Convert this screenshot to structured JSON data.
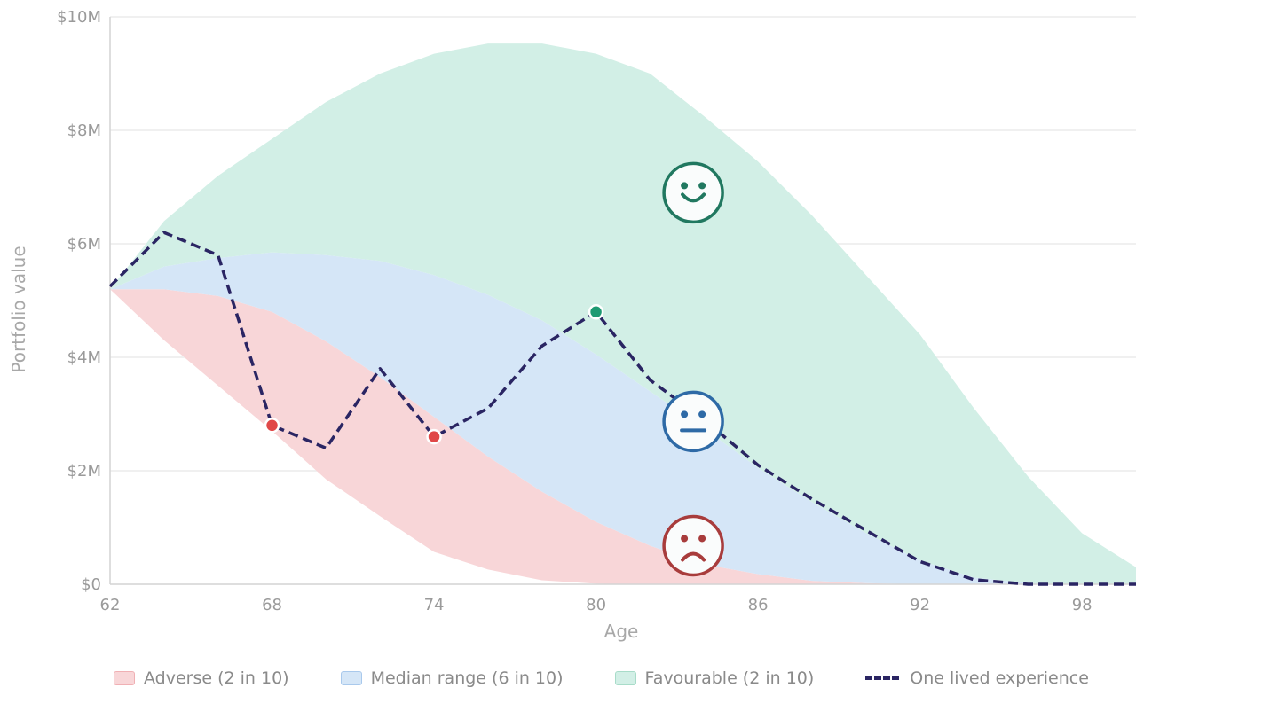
{
  "chart_data": {
    "type": "area",
    "xlabel": "Age",
    "ylabel": "Portfolio value",
    "xlim": [
      62,
      100
    ],
    "ylim": [
      0,
      10
    ],
    "x_ticks": [
      62,
      68,
      74,
      80,
      86,
      92,
      98
    ],
    "x_tick_labels": [
      "62",
      "68",
      "74",
      "80",
      "86",
      "92",
      "98"
    ],
    "y_ticks": [
      0,
      2,
      4,
      6,
      8,
      10
    ],
    "y_tick_labels": [
      "$0",
      "$2M",
      "$4M",
      "$6M",
      "$8M",
      "$10M"
    ],
    "grid": "horizontal",
    "legend_position": "bottom",
    "ages": [
      62,
      64,
      66,
      68,
      70,
      72,
      74,
      76,
      78,
      80,
      82,
      84,
      86,
      88,
      90,
      92,
      94,
      96,
      98,
      100
    ],
    "bands": [
      {
        "name": "Adverse (2 in 10)",
        "color": "#f8d6d8",
        "lower": [
          5.2,
          4.3,
          3.5,
          2.7,
          1.85,
          1.2,
          0.57,
          0.26,
          0.07,
          0.01,
          0,
          0,
          0,
          0,
          0,
          0,
          0,
          0,
          0,
          0
        ],
        "upper": [
          5.2,
          5.2,
          5.08,
          4.8,
          4.28,
          3.65,
          2.95,
          2.25,
          1.63,
          1.1,
          0.68,
          0.35,
          0.18,
          0.06,
          0.02,
          0,
          0,
          0,
          0,
          0
        ]
      },
      {
        "name": "Median range (6 in 10)",
        "color": "#d5e6f7",
        "lower": [
          5.2,
          5.2,
          5.08,
          4.8,
          4.28,
          3.65,
          2.95,
          2.25,
          1.63,
          1.1,
          0.68,
          0.35,
          0.18,
          0.06,
          0.02,
          0,
          0,
          0,
          0,
          0
        ],
        "upper": [
          5.2,
          5.6,
          5.75,
          5.85,
          5.8,
          5.7,
          5.45,
          5.1,
          4.65,
          4.05,
          3.4,
          2.75,
          2.05,
          1.45,
          0.9,
          0.42,
          0.12,
          0.02,
          0,
          0
        ]
      },
      {
        "name": "Favourable (2 in 10)",
        "color": "#d2efe6",
        "lower": [
          5.2,
          5.6,
          5.75,
          5.85,
          5.8,
          5.7,
          5.45,
          5.1,
          4.65,
          4.05,
          3.4,
          2.75,
          2.05,
          1.45,
          0.9,
          0.42,
          0.12,
          0.02,
          0,
          0
        ],
        "upper": [
          5.2,
          6.4,
          7.2,
          7.85,
          8.5,
          9.0,
          9.35,
          9.53,
          9.53,
          9.35,
          9.0,
          8.25,
          7.45,
          6.5,
          5.45,
          4.4,
          3.1,
          1.9,
          0.9,
          0.3
        ]
      }
    ],
    "series": [
      {
        "name": "One lived experience",
        "color": "#2a2563",
        "x": [
          62,
          64,
          66,
          68,
          70,
          72,
          74,
          76,
          78,
          80,
          82,
          84,
          86,
          88,
          90,
          92,
          94,
          96,
          98,
          100
        ],
        "values": [
          5.25,
          6.2,
          5.8,
          2.8,
          2.4,
          3.8,
          2.6,
          3.1,
          4.2,
          4.8,
          3.6,
          2.9,
          2.1,
          1.5,
          0.95,
          0.4,
          0.08,
          0,
          0,
          0
        ]
      }
    ],
    "highlight_points": [
      {
        "x": 68,
        "y": 2.8,
        "color": "#e04848"
      },
      {
        "x": 74,
        "y": 2.6,
        "color": "#e04848"
      },
      {
        "x": 80,
        "y": 4.8,
        "color": "#1e9a72"
      }
    ],
    "mood_icons": [
      {
        "icon": "happy-face-icon",
        "x": 83.6,
        "y": 6.9,
        "color": "#217860"
      },
      {
        "icon": "neutral-face-icon",
        "x": 83.6,
        "y": 2.87,
        "color": "#2e6aa6"
      },
      {
        "icon": "sad-face-icon",
        "x": 83.6,
        "y": 0.68,
        "color": "#a83c3c"
      }
    ],
    "legend": [
      {
        "label": "Adverse (2 in 10)",
        "kind": "band",
        "fill": "#f8d6d8",
        "stroke": "#f0b0b4"
      },
      {
        "label": "Median range (6 in 10)",
        "kind": "band",
        "fill": "#d5e6f7",
        "stroke": "#a9c9ec"
      },
      {
        "label": "Favourable (2 in 10)",
        "kind": "band",
        "fill": "#d2efe6",
        "stroke": "#a8dcc9"
      },
      {
        "label": "One lived experience",
        "kind": "line",
        "color": "#2a2563"
      }
    ]
  }
}
